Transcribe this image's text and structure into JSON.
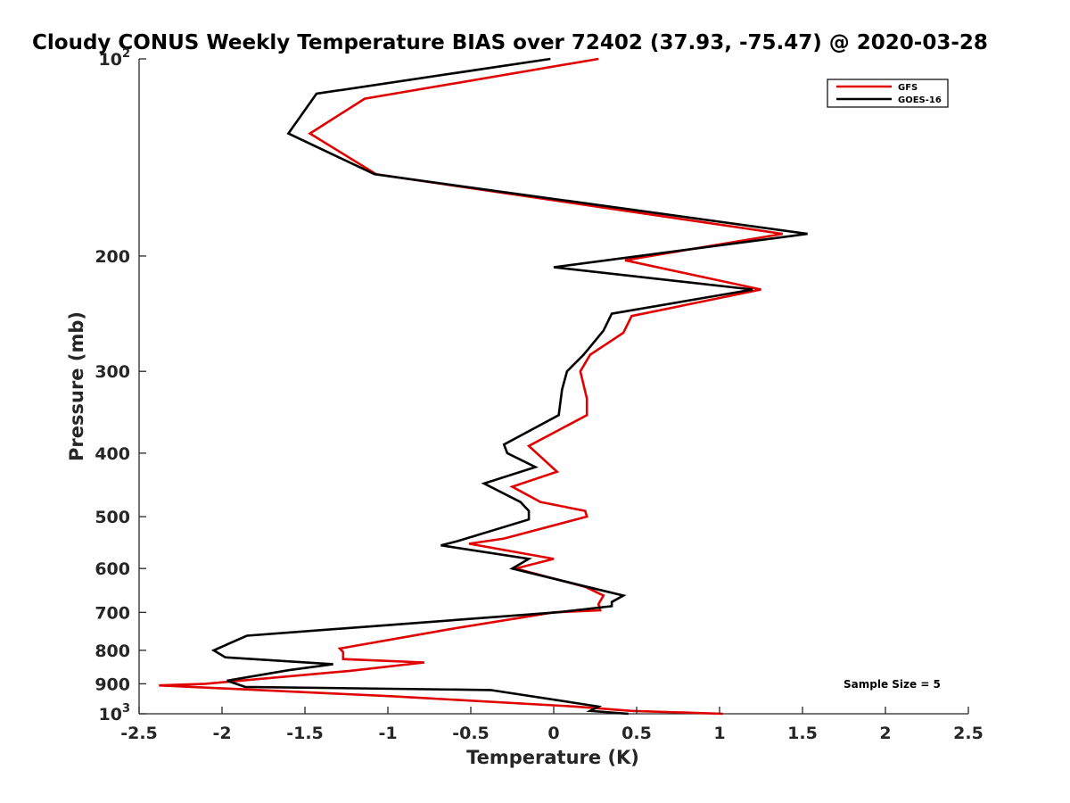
{
  "chart_data": {
    "type": "line",
    "title": "Cloudy CONUS Weekly Temperature BIAS over 72402 (37.93, -75.47) @ 2020-03-28",
    "xlabel": "Temperature (K)",
    "ylabel": "Pressure (mb)",
    "xlim": [
      -2.5,
      2.5
    ],
    "ylim": [
      100,
      1000
    ],
    "y_scale": "log",
    "y_reversed": true,
    "grid": false,
    "legend_position": "top-right",
    "x_ticks": [
      "-2.5",
      "-2",
      "-1.5",
      "-1",
      "-0.5",
      "0",
      "0.5",
      "1",
      "1.5",
      "2",
      "2.5"
    ],
    "x_tick_values": [
      -2.5,
      -2,
      -1.5,
      -1,
      -0.5,
      0,
      0.5,
      1,
      1.5,
      2,
      2.5
    ],
    "y_ticks": [
      {
        "value": 100,
        "base": "10",
        "exp": "2"
      },
      {
        "value": 200,
        "base": "200",
        "exp": ""
      },
      {
        "value": 300,
        "base": "300",
        "exp": ""
      },
      {
        "value": 400,
        "base": "400",
        "exp": ""
      },
      {
        "value": 500,
        "base": "500",
        "exp": ""
      },
      {
        "value": 600,
        "base": "600",
        "exp": ""
      },
      {
        "value": 700,
        "base": "700",
        "exp": ""
      },
      {
        "value": 800,
        "base": "800",
        "exp": ""
      },
      {
        "value": 900,
        "base": "900",
        "exp": ""
      },
      {
        "value": 1000,
        "base": "10",
        "exp": "3"
      }
    ],
    "annotation": "Sample Size = 5",
    "series": [
      {
        "name": "GFS",
        "color": "#e00000",
        "points": [
          [
            0.27,
            100
          ],
          [
            -1.14,
            115
          ],
          [
            -1.47,
            130
          ],
          [
            -1.07,
            150
          ],
          [
            1.38,
            185
          ],
          [
            0.43,
            203
          ],
          [
            1.25,
            225
          ],
          [
            0.47,
            247
          ],
          [
            0.42,
            262
          ],
          [
            0.22,
            283
          ],
          [
            0.16,
            300
          ],
          [
            0.2,
            330
          ],
          [
            0.2,
            350
          ],
          [
            -0.15,
            390
          ],
          [
            0.02,
            427
          ],
          [
            -0.25,
            450
          ],
          [
            -0.08,
            475
          ],
          [
            0.19,
            490
          ],
          [
            0.2,
            500
          ],
          [
            -0.3,
            540
          ],
          [
            -0.51,
            550
          ],
          [
            0.0,
            580
          ],
          [
            -0.23,
            600
          ],
          [
            0.19,
            640
          ],
          [
            0.3,
            660
          ],
          [
            0.27,
            680
          ],
          [
            0.28,
            695
          ],
          [
            0.0,
            700
          ],
          [
            -0.63,
            743
          ],
          [
            -1.29,
            795
          ],
          [
            -1.27,
            805
          ],
          [
            -1.27,
            825
          ],
          [
            -0.78,
            835
          ],
          [
            -1.23,
            860
          ],
          [
            -2.1,
            900
          ],
          [
            -2.38,
            905
          ],
          [
            -0.98,
            940
          ],
          [
            0.13,
            975
          ],
          [
            0.47,
            990
          ],
          [
            1.02,
            1000
          ]
        ]
      },
      {
        "name": "GOES-16",
        "color": "#000000",
        "points": [
          [
            -0.02,
            100
          ],
          [
            -1.43,
            113
          ],
          [
            -1.6,
            130
          ],
          [
            -1.08,
            150
          ],
          [
            1.53,
            185
          ],
          [
            0.0,
            208
          ],
          [
            1.2,
            225
          ],
          [
            0.35,
            245
          ],
          [
            0.3,
            260
          ],
          [
            0.18,
            283
          ],
          [
            0.08,
            300
          ],
          [
            0.05,
            320
          ],
          [
            0.03,
            350
          ],
          [
            -0.3,
            388
          ],
          [
            -0.28,
            400
          ],
          [
            -0.11,
            420
          ],
          [
            -0.42,
            445
          ],
          [
            -0.2,
            475
          ],
          [
            -0.15,
            490
          ],
          [
            -0.15,
            505
          ],
          [
            -0.58,
            545
          ],
          [
            -0.68,
            553
          ],
          [
            -0.15,
            580
          ],
          [
            -0.25,
            600
          ],
          [
            0.2,
            640
          ],
          [
            0.42,
            660
          ],
          [
            0.35,
            675
          ],
          [
            0.35,
            685
          ],
          [
            0.02,
            700
          ],
          [
            -1.85,
            760
          ],
          [
            -2.05,
            800
          ],
          [
            -1.98,
            820
          ],
          [
            -1.33,
            840
          ],
          [
            -1.6,
            858
          ],
          [
            -1.97,
            890
          ],
          [
            -1.86,
            910
          ],
          [
            -0.38,
            920
          ],
          [
            0.1,
            960
          ],
          [
            0.27,
            975
          ],
          [
            0.22,
            990
          ],
          [
            0.45,
            1000
          ]
        ]
      }
    ]
  }
}
